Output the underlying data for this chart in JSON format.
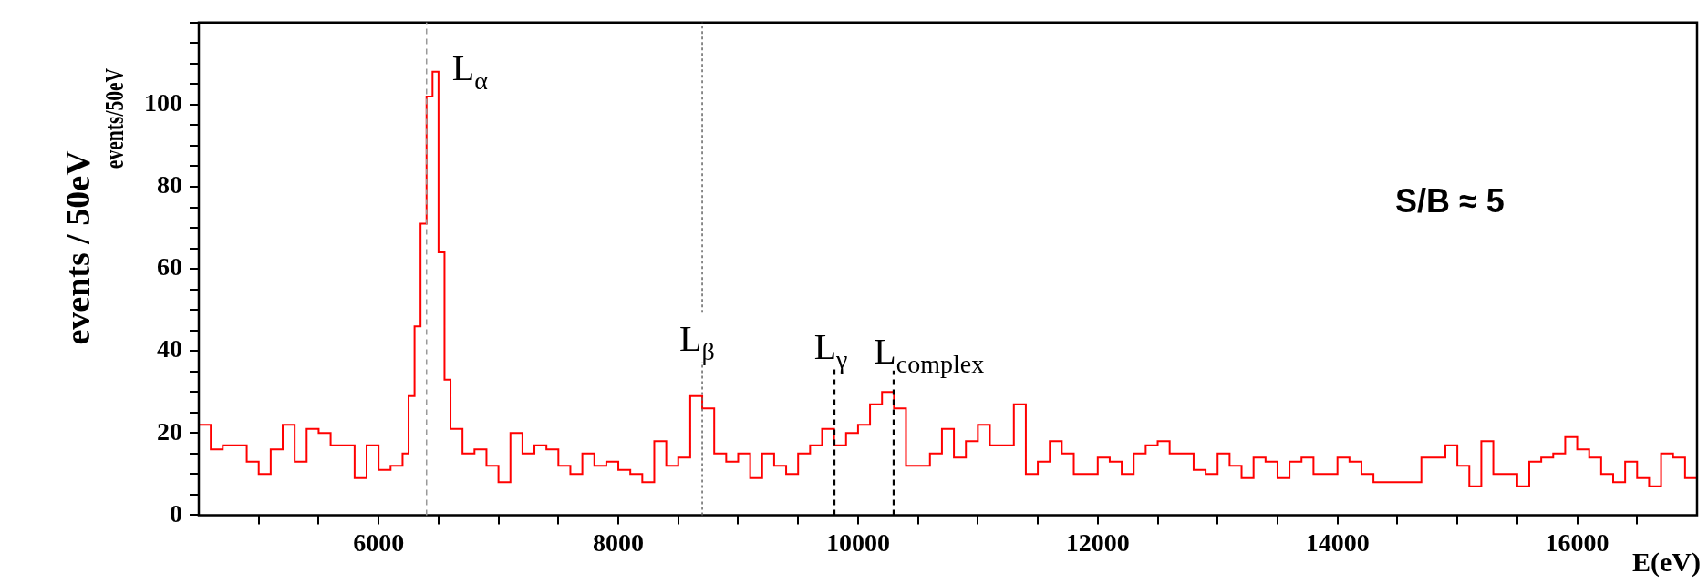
{
  "chart_data": {
    "type": "histogram",
    "ylabel": "events / 50eV",
    "xlabel": "E(eV)",
    "bins": [
      4500,
      4600,
      4700,
      4800,
      4900,
      5000,
      5100,
      5200,
      5300,
      5400,
      5500,
      5600,
      5700,
      5800,
      5900,
      6000,
      6100,
      6200,
      6250,
      6300,
      6350,
      6400,
      6450,
      6500,
      6550,
      6600,
      6700,
      6800,
      6900,
      7000,
      7100,
      7200,
      7300,
      7400,
      7500,
      7600,
      7700,
      7800,
      7900,
      8000,
      8100,
      8200,
      8300,
      8400,
      8500,
      8600,
      8700,
      8800,
      8900,
      9000,
      9100,
      9200,
      9300,
      9400,
      9500,
      9600,
      9700,
      9800,
      9900,
      10000,
      10100,
      10200,
      10300,
      10400,
      10500,
      10600,
      10700,
      10800,
      10900,
      11000,
      11100,
      11200,
      11300,
      11400,
      11500,
      11600,
      11700,
      11800,
      11900,
      12000,
      12100,
      12200,
      12300,
      12400,
      12500,
      12600,
      12700,
      12800,
      12900,
      13000,
      13100,
      13200,
      13300,
      13400,
      13500,
      13600,
      13700,
      13800,
      13900,
      14000,
      14100,
      14200,
      14300,
      14400,
      14500,
      14600,
      14700,
      14800,
      14900,
      15000,
      15100,
      15200,
      15300,
      15400,
      15500,
      15600,
      15700,
      15800,
      15900,
      16000,
      16100,
      16200,
      16300,
      16400,
      16500,
      16600,
      16700,
      16800,
      16900,
      17000
    ],
    "values": [
      22,
      16,
      17,
      17,
      13,
      10,
      16,
      22,
      13,
      21,
      20,
      17,
      17,
      9,
      17,
      11,
      12,
      15,
      29,
      46,
      71,
      102,
      108,
      64,
      33,
      21,
      15,
      16,
      12,
      8,
      20,
      15,
      17,
      16,
      12,
      10,
      15,
      12,
      13,
      11,
      10,
      8,
      18,
      12,
      14,
      29,
      26,
      15,
      13,
      15,
      9,
      15,
      12,
      10,
      15,
      17,
      21,
      17,
      20,
      22,
      27,
      30,
      26,
      12,
      12,
      15,
      21,
      14,
      18,
      22,
      17,
      17,
      27,
      10,
      13,
      18,
      15,
      10,
      10,
      14,
      13,
      10,
      15,
      17,
      18,
      15,
      15,
      11,
      10,
      15,
      12,
      9,
      14,
      13,
      9,
      13,
      14,
      10,
      10,
      14,
      13,
      10,
      8,
      8,
      8,
      8,
      14,
      14,
      17,
      12,
      7,
      18,
      10,
      10,
      7,
      13,
      14,
      15,
      19,
      16,
      14,
      10,
      8,
      13,
      9,
      7,
      15,
      14,
      9
    ],
    "color": "#ff0000",
    "xlim": [
      4500,
      17000
    ],
    "xticks": [
      {
        "value": 5000,
        "label": null
      },
      {
        "value": 5500,
        "label": null
      },
      6000,
      {
        "value": 6500,
        "label": null
      },
      {
        "value": 7000,
        "label": null
      },
      {
        "value": 7500,
        "label": null
      },
      8000,
      {
        "value": 8500,
        "label": null
      },
      {
        "value": 9000,
        "label": null
      },
      {
        "value": 9500,
        "label": null
      },
      10000,
      {
        "value": 10500,
        "label": null
      },
      {
        "value": 11000,
        "label": null
      },
      {
        "value": 11500,
        "label": null
      },
      12000,
      {
        "value": 12500,
        "label": null
      },
      {
        "value": 13000,
        "label": null
      },
      {
        "value": 13500,
        "label": null
      },
      14000,
      {
        "value": 14500,
        "label": null
      },
      {
        "value": 15000,
        "label": null
      },
      {
        "value": 15500,
        "label": null
      },
      16000,
      {
        "value": 16500,
        "label": null
      }
    ],
    "ylim": [
      0,
      120
    ],
    "yticks": [
      0,
      {
        "value": 5,
        "label": null
      },
      {
        "value": 10,
        "label": null
      },
      {
        "value": 15,
        "label": null
      },
      20,
      {
        "value": 25,
        "label": null
      },
      {
        "value": 30,
        "label": null
      },
      {
        "value": 35,
        "label": null
      },
      40,
      {
        "value": 45,
        "label": null
      },
      {
        "value": 50,
        "label": null
      },
      {
        "value": 55,
        "label": null
      },
      60,
      {
        "value": 65,
        "label": null
      },
      {
        "value": 70,
        "label": null
      },
      {
        "value": 75,
        "label": null
      },
      80,
      {
        "value": 85,
        "label": null
      },
      {
        "value": 90,
        "label": null
      },
      {
        "value": 95,
        "label": null
      },
      100,
      {
        "value": 105,
        "label": null
      },
      {
        "value": 110,
        "label": null
      },
      {
        "value": 115,
        "label": null
      },
      {
        "value": 120,
        "label": null
      }
    ],
    "grid": false,
    "ref_lines": [
      {
        "axis": "x",
        "value": 6400,
        "label": "L$_{α}$",
        "color": "#999999",
        "line_style": "dashed"
      },
      {
        "axis": "x",
        "value": 8700,
        "label": "L$_{β}$",
        "color": "#666666",
        "line_style": "dotted"
      },
      {
        "axis": "x",
        "value": 9800,
        "label": "L$_{γ}$",
        "color": "#000000",
        "line_style": "dashed"
      },
      {
        "axis": "x",
        "value": 10300,
        "label": "L$_{complex}$",
        "color": "#000000",
        "line_style": "dashed"
      }
    ],
    "annotations": [
      "events/50eV",
      "S/B ≈ 5"
    ]
  }
}
